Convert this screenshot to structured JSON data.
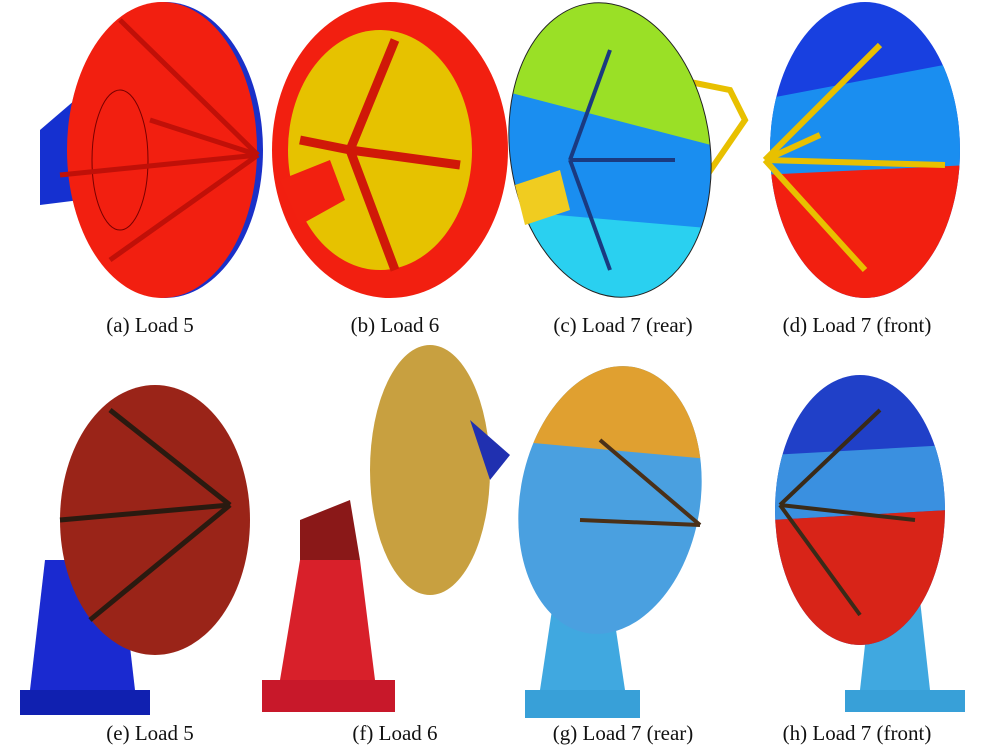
{
  "figure": {
    "panels": [
      {
        "caption": "(a) Load 5"
      },
      {
        "caption": "(b) Load 6"
      },
      {
        "caption": "(c) Load 7 (rear)"
      },
      {
        "caption": "(d) Load 7 (front)"
      },
      {
        "caption": "(e) Load 5"
      },
      {
        "caption": "(f) Load 6"
      },
      {
        "caption": "(g) Load 7 (rear)"
      },
      {
        "caption": "(h) Load 7 (front)"
      }
    ]
  }
}
